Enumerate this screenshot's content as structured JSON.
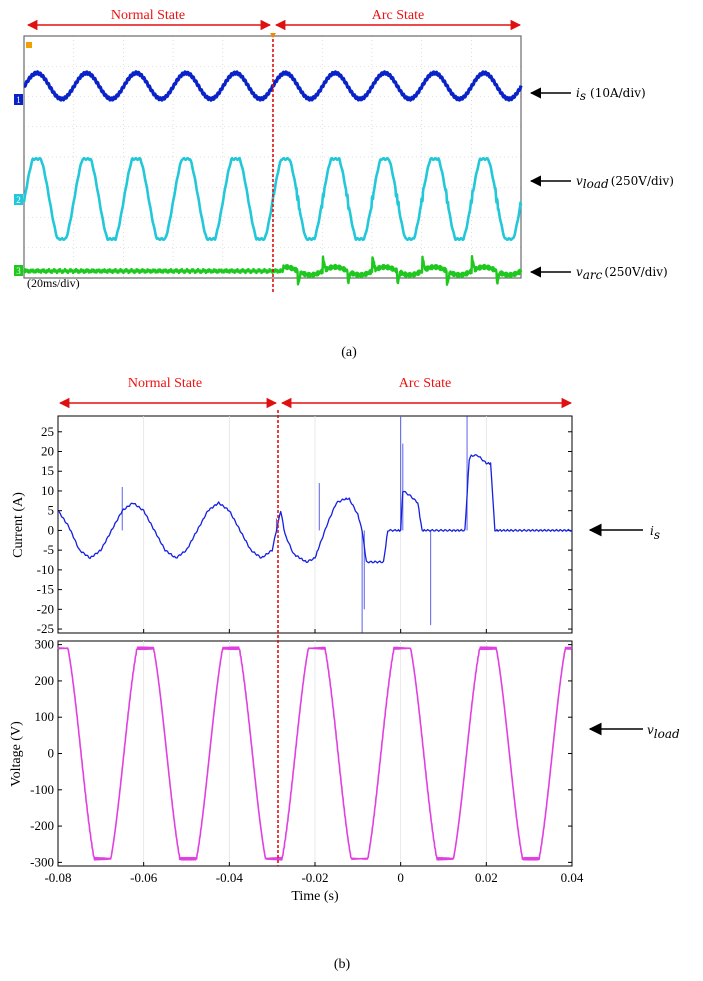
{
  "colors": {
    "state_red": "#e01010",
    "scope_bg": "#ffffff",
    "scope_grid": "#bdbdbd",
    "is_scope": "#0a23c8",
    "vload_scope": "#22c8d8",
    "varc_scope": "#1ec81e",
    "is_plot": "#1520e0",
    "vload_plot": "#e040e0"
  },
  "panel_a": {
    "normal_state_label": "Normal State",
    "arc_state_label": "Arc State",
    "ch1_marker": "1",
    "ch2_marker": "2",
    "ch3_marker": "3",
    "timebase": "(20ms/div)",
    "ann_is_var": "i",
    "ann_is_sub": "s",
    "ann_is_scale": "(10A/div)",
    "ann_vload_var": "v",
    "ann_vload_sub": "load",
    "ann_vload_scale": "(250V/div)",
    "ann_varc_var": "v",
    "ann_varc_sub": "arc",
    "ann_varc_scale": "(250V/div)",
    "caption": "(a)"
  },
  "panel_b": {
    "normal_state_label": "Normal State",
    "arc_state_label": "Arc State",
    "ann_is_var": "i",
    "ann_is_sub": "s",
    "ann_vload_var": "v",
    "ann_vload_sub": "load",
    "caption": "(b)"
  },
  "chart_data": [
    {
      "type": "line",
      "name": "oscilloscope capture",
      "time_per_div_ms": 20,
      "series": [
        {
          "name": "i_s",
          "scale": "10A/div",
          "frequency_hz": 50
        },
        {
          "name": "v_load",
          "scale": "250V/div",
          "frequency_hz": 50
        },
        {
          "name": "v_arc",
          "scale": "250V/div"
        }
      ]
    },
    {
      "type": "line",
      "xlabel": "Time (s)",
      "x_ticks": [
        "-0.08",
        "-0.06",
        "-0.04",
        "-0.02",
        "0",
        "0.02",
        "0.04"
      ],
      "xlim": [
        -0.08,
        0.04
      ],
      "arc_onset_s": -0.028,
      "subplots": [
        {
          "ylabel": "Current (A)",
          "ylim": [
            -26,
            29
          ],
          "y_ticks": [
            "25",
            "20",
            "15",
            "10",
            "5",
            "0",
            "-5",
            "-10",
            "-15",
            "-20",
            "-25"
          ],
          "series": [
            {
              "name": "i_s",
              "x": [
                -0.08,
                -0.0775,
                -0.075,
                -0.0725,
                -0.07,
                -0.0675,
                -0.065,
                -0.0625,
                -0.06,
                -0.0575,
                -0.055,
                -0.0525,
                -0.05,
                -0.0475,
                -0.045,
                -0.0425,
                -0.04,
                -0.0375,
                -0.035,
                -0.0325,
                -0.03,
                -0.028,
                -0.027,
                -0.025,
                -0.022,
                -0.02,
                -0.019,
                -0.017,
                -0.015,
                -0.013,
                -0.012,
                -0.01,
                -0.009,
                -0.008,
                -0.006,
                -0.004,
                -0.003,
                -0.001,
                0.0,
                0.0005,
                0.002,
                0.004,
                0.005,
                0.006,
                0.008,
                0.012,
                0.015,
                0.016,
                0.0165,
                0.018,
                0.02,
                0.021,
                0.022,
                0.023,
                0.026,
                0.03,
                0.035,
                0.04
              ],
              "values": [
                5,
                1,
                -5,
                -7,
                -5,
                0,
                5,
                7,
                5,
                0,
                -5,
                -7,
                -5,
                0,
                5,
                7,
                5,
                0,
                -5,
                -7,
                -5,
                5,
                -1,
                -6,
                -8,
                -7,
                -4,
                2,
                7,
                8,
                8,
                4,
                0,
                -8,
                -8,
                -8,
                0,
                0,
                0,
                10,
                9,
                7,
                0,
                0,
                0,
                0,
                0,
                18,
                19,
                19,
                17,
                17,
                0,
                0,
                0,
                0,
                0,
                0
              ]
            }
          ]
        },
        {
          "ylabel": "Voltage (V)",
          "ylim": [
            -310,
            310
          ],
          "y_ticks": [
            "300",
            "200",
            "100",
            "0",
            "-100",
            "-200",
            "-300"
          ],
          "series": [
            {
              "name": "v_load",
              "frequency_hz": 50,
              "amplitude_v": 290,
              "waveform": "trapezoidal"
            }
          ]
        }
      ]
    }
  ]
}
